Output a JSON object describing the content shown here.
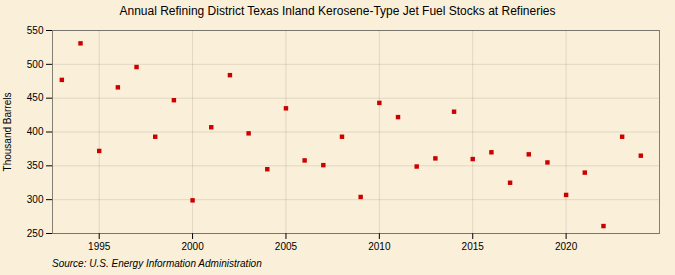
{
  "chart_data": {
    "type": "scatter",
    "title": "Annual Refining District Texas Inland Kerosene-Type Jet Fuel Stocks at Refineries",
    "ylabel": "Thousand Barrels",
    "source": "Source: U.S. Energy Information Administration",
    "color": "#cc0000",
    "marker": "square",
    "grid": true,
    "x": [
      1993,
      1994,
      1995,
      1996,
      1997,
      1998,
      1999,
      2000,
      2001,
      2002,
      2003,
      2004,
      2005,
      2006,
      2007,
      2008,
      2009,
      2010,
      2011,
      2012,
      2013,
      2014,
      2015,
      2016,
      2017,
      2018,
      2019,
      2020,
      2021,
      2022,
      2023,
      2024
    ],
    "values": [
      477,
      531,
      372,
      466,
      496,
      393,
      447,
      299,
      407,
      484,
      398,
      345,
      435,
      358,
      351,
      393,
      304,
      443,
      422,
      349,
      361,
      430,
      360,
      370,
      325,
      367,
      355,
      307,
      340,
      261,
      393,
      365
    ],
    "xlim": [
      1992.5,
      2025
    ],
    "xticks": [
      1995,
      2000,
      2005,
      2010,
      2015,
      2020
    ],
    "ylim": [
      250,
      550
    ],
    "yticks": [
      250,
      300,
      350,
      400,
      450,
      500,
      550
    ]
  }
}
